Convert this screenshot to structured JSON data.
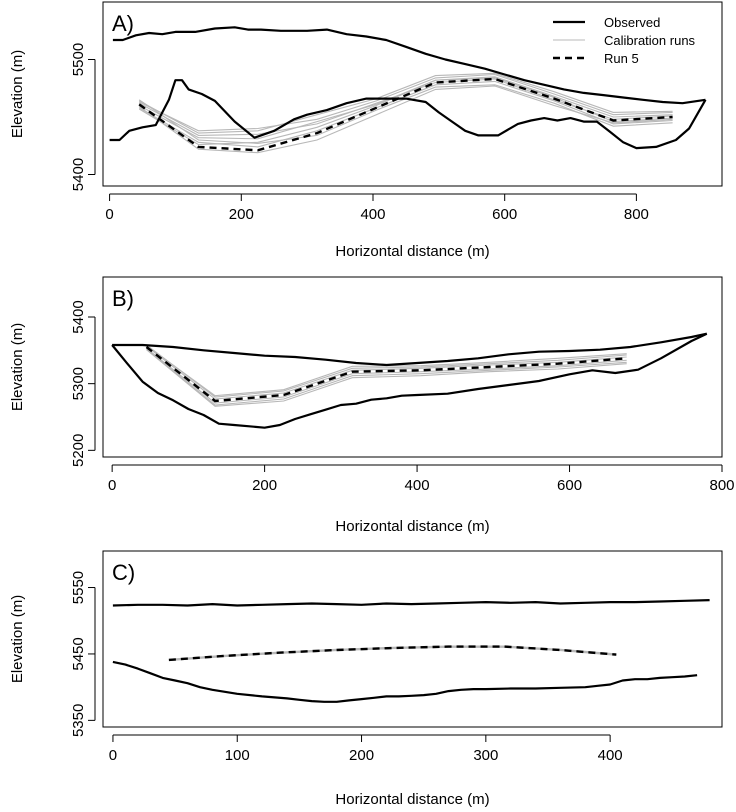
{
  "chart_data": [
    {
      "type": "line",
      "panel_label": "A)",
      "xlabel": "Horizontal distance (m)",
      "ylabel": "Elevation (m)",
      "xlim": [
        -10,
        930
      ],
      "ylim": [
        5390,
        5550
      ],
      "xticks": [
        0,
        200,
        400,
        600,
        800
      ],
      "yticks": [
        5400,
        5500
      ],
      "legend": {
        "placement": "top-right",
        "entries": [
          "Observed",
          "Calibration runs",
          "Run 5"
        ]
      },
      "series": [
        {
          "name": "Observed",
          "role": "observed-upper",
          "x": [
            5,
            20,
            40,
            60,
            80,
            100,
            130,
            160,
            190,
            210,
            230,
            260,
            300,
            330,
            360,
            390,
            420,
            450,
            480,
            510,
            540,
            570,
            600,
            630,
            660,
            690,
            720,
            750,
            780,
            810,
            840,
            870,
            905
          ],
          "y": [
            5517,
            5517,
            5521,
            5523,
            5522,
            5524,
            5524,
            5527,
            5528,
            5526,
            5526,
            5525,
            5525,
            5526,
            5522,
            5520,
            5517,
            5511,
            5505,
            5500,
            5496,
            5492,
            5487,
            5482,
            5478,
            5474,
            5471,
            5469,
            5467,
            5465,
            5463,
            5462,
            5465
          ]
        },
        {
          "name": "Observed",
          "role": "observed-lower",
          "x": [
            0,
            15,
            30,
            50,
            70,
            90,
            100,
            110,
            120,
            140,
            160,
            190,
            220,
            250,
            280,
            300,
            330,
            360,
            390,
            420,
            450,
            480,
            500,
            520,
            540,
            560,
            590,
            620,
            640,
            660,
            680,
            700,
            720,
            740,
            760,
            780,
            800,
            830,
            860,
            880,
            905
          ],
          "y": [
            5430,
            5430,
            5438,
            5441,
            5443,
            5465,
            5482,
            5482,
            5474,
            5470,
            5464,
            5446,
            5432,
            5438,
            5448,
            5452,
            5456,
            5462,
            5466,
            5466,
            5466,
            5463,
            5454,
            5446,
            5438,
            5434,
            5434,
            5444,
            5447,
            5449,
            5447,
            5449,
            5446,
            5446,
            5437,
            5428,
            5423,
            5424,
            5430,
            5440,
            5465
          ]
        },
        {
          "name": "Run 5",
          "role": "run",
          "x": [
            45,
            135,
            225,
            315,
            405,
            495,
            585,
            675,
            765,
            855
          ],
          "y": [
            5461,
            5424,
            5421,
            5436,
            5458,
            5480,
            5483,
            5466,
            5447,
            5450
          ]
        }
      ],
      "calibration_runs": {
        "name": "Calibration runs",
        "x": [
          45,
          135,
          225,
          315,
          405,
          495,
          585,
          675,
          765,
          855
        ],
        "runs": [
          [
            5465,
            5430,
            5427,
            5434,
            5456,
            5476,
            5478,
            5462,
            5442,
            5445
          ],
          [
            5459,
            5422,
            5419,
            5430,
            5452,
            5474,
            5477,
            5460,
            5445,
            5448
          ],
          [
            5463,
            5438,
            5440,
            5448,
            5464,
            5484,
            5487,
            5470,
            5452,
            5454
          ],
          [
            5457,
            5426,
            5428,
            5441,
            5460,
            5482,
            5485,
            5468,
            5450,
            5452
          ],
          [
            5462,
            5434,
            5435,
            5444,
            5462,
            5480,
            5483,
            5465,
            5448,
            5451
          ],
          [
            5458,
            5428,
            5424,
            5438,
            5458,
            5478,
            5481,
            5464,
            5444,
            5447
          ],
          [
            5464,
            5436,
            5438,
            5452,
            5466,
            5486,
            5488,
            5472,
            5454,
            5455
          ],
          [
            5460,
            5432,
            5431,
            5446,
            5461,
            5482,
            5484,
            5467,
            5446,
            5449
          ]
        ]
      }
    },
    {
      "type": "line",
      "panel_label": "B)",
      "xlabel": "Horizontal distance (m)",
      "ylabel": "Elevation (m)",
      "xlim": [
        -12,
        800
      ],
      "ylim": [
        5190,
        5460
      ],
      "xticks": [
        0,
        200,
        400,
        600,
        800
      ],
      "yticks": [
        5200,
        5300,
        5400
      ],
      "series": [
        {
          "name": "Observed",
          "role": "observed-upper",
          "x": [
            0,
            40,
            80,
            120,
            160,
            200,
            240,
            280,
            320,
            360,
            400,
            440,
            480,
            520,
            560,
            600,
            640,
            680,
            720,
            760,
            780
          ],
          "y": [
            5358,
            5358,
            5355,
            5350,
            5346,
            5342,
            5340,
            5336,
            5331,
            5328,
            5331,
            5334,
            5338,
            5344,
            5348,
            5349,
            5351,
            5355,
            5362,
            5370,
            5375
          ]
        },
        {
          "name": "Observed",
          "role": "observed-lower",
          "x": [
            0,
            20,
            40,
            60,
            80,
            100,
            120,
            140,
            160,
            180,
            200,
            220,
            240,
            260,
            280,
            300,
            320,
            340,
            360,
            380,
            400,
            440,
            480,
            520,
            560,
            600,
            630,
            660,
            690,
            720,
            760,
            780
          ],
          "y": [
            5358,
            5330,
            5303,
            5286,
            5275,
            5262,
            5253,
            5240,
            5238,
            5236,
            5234,
            5238,
            5247,
            5254,
            5261,
            5268,
            5270,
            5276,
            5278,
            5282,
            5283,
            5285,
            5292,
            5298,
            5304,
            5314,
            5320,
            5316,
            5321,
            5338,
            5364,
            5375
          ]
        },
        {
          "name": "Run 5",
          "role": "run",
          "x": [
            45,
            135,
            225,
            315,
            405,
            495,
            585,
            675
          ],
          "y": [
            5355,
            5274,
            5283,
            5318,
            5320,
            5325,
            5330,
            5338
          ]
        }
      ],
      "calibration_runs": {
        "name": "Calibration runs",
        "x": [
          45,
          135,
          225,
          315,
          405,
          495,
          585,
          675
        ],
        "runs": [
          [
            5358,
            5280,
            5289,
            5323,
            5325,
            5330,
            5335,
            5343
          ],
          [
            5352,
            5268,
            5277,
            5312,
            5315,
            5320,
            5325,
            5332
          ],
          [
            5356,
            5277,
            5286,
            5320,
            5323,
            5328,
            5332,
            5340
          ],
          [
            5353,
            5271,
            5280,
            5315,
            5318,
            5322,
            5327,
            5335
          ],
          [
            5357,
            5282,
            5291,
            5326,
            5327,
            5332,
            5338,
            5345
          ],
          [
            5351,
            5266,
            5274,
            5309,
            5312,
            5318,
            5322,
            5330
          ]
        ]
      }
    },
    {
      "type": "line",
      "panel_label": "C)",
      "xlabel": "Horizontal distance (m)",
      "ylabel": "Elevation (m)",
      "xlim": [
        -8,
        490
      ],
      "ylim": [
        5340,
        5605
      ],
      "xticks": [
        0,
        100,
        200,
        300,
        400
      ],
      "yticks": [
        5350,
        5450,
        5550
      ],
      "series": [
        {
          "name": "Observed",
          "role": "observed-upper",
          "x": [
            0,
            20,
            40,
            60,
            80,
            100,
            120,
            140,
            160,
            180,
            200,
            220,
            240,
            260,
            280,
            300,
            320,
            340,
            360,
            380,
            400,
            420,
            440,
            460,
            480
          ],
          "y": [
            5523,
            5524,
            5524,
            5523,
            5525,
            5523,
            5524,
            5525,
            5526,
            5525,
            5524,
            5526,
            5525,
            5526,
            5527,
            5528,
            5527,
            5528,
            5526,
            5527,
            5528,
            5528,
            5529,
            5530,
            5531
          ]
        },
        {
          "name": "Observed",
          "role": "observed-lower",
          "x": [
            0,
            10,
            20,
            30,
            40,
            50,
            60,
            70,
            80,
            90,
            100,
            120,
            140,
            150,
            160,
            170,
            180,
            190,
            200,
            210,
            220,
            230,
            240,
            250,
            260,
            270,
            280,
            290,
            300,
            320,
            340,
            360,
            380,
            390,
            400,
            410,
            420,
            430,
            440,
            450,
            460,
            470
          ],
          "y": [
            5438,
            5434,
            5428,
            5421,
            5414,
            5410,
            5406,
            5400,
            5396,
            5393,
            5390,
            5386,
            5383,
            5381,
            5379,
            5378,
            5378,
            5380,
            5382,
            5384,
            5386,
            5386,
            5387,
            5388,
            5390,
            5394,
            5396,
            5397,
            5397,
            5398,
            5398,
            5399,
            5400,
            5402,
            5404,
            5410,
            5412,
            5412,
            5414,
            5415,
            5416,
            5418
          ]
        },
        {
          "name": "Run 5",
          "role": "run",
          "x": [
            45,
            90,
            135,
            180,
            225,
            270,
            315,
            360,
            405
          ],
          "y": [
            5441,
            5447,
            5452,
            5456,
            5459,
            5461,
            5461,
            5456,
            5449
          ]
        }
      ],
      "calibration_runs": {
        "name": "Calibration runs",
        "x": [
          45,
          90,
          135,
          180,
          225,
          270,
          315,
          360,
          405
        ],
        "runs": [
          [
            5442,
            5448,
            5453,
            5457,
            5460,
            5462,
            5462,
            5457,
            5450
          ],
          [
            5440,
            5446,
            5451,
            5455,
            5458,
            5460,
            5460,
            5455,
            5448
          ],
          [
            5441,
            5447,
            5452,
            5456,
            5459,
            5461,
            5461,
            5456,
            5449
          ]
        ]
      }
    }
  ]
}
